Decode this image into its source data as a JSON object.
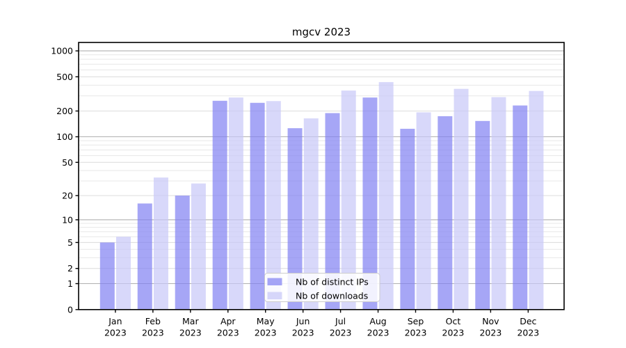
{
  "chart_data": {
    "type": "bar",
    "title": "mgcv 2023",
    "categories": [
      "Jan",
      "Feb",
      "Mar",
      "Apr",
      "May",
      "Jun",
      "Jul",
      "Aug",
      "Sep",
      "Oct",
      "Nov",
      "Dec"
    ],
    "year_label": "2023",
    "series": [
      {
        "name": "Nb of distinct IPs",
        "color": "rgba(128,128,242,0.7)",
        "values": [
          5,
          16,
          20,
          263,
          249,
          126,
          189,
          287,
          124,
          174,
          153,
          232
        ]
      },
      {
        "name": "Nb of downloads",
        "color": "rgba(200,200,248,0.7)",
        "values": [
          6,
          33,
          28,
          287,
          261,
          164,
          346,
          434,
          193,
          362,
          290,
          342
        ]
      }
    ],
    "yscale": "log1p",
    "y_ticks": [
      0,
      1,
      2,
      5,
      10,
      20,
      50,
      100,
      200,
      500,
      1000
    ],
    "ylim": [
      0,
      1258
    ],
    "grid": true,
    "legend_position": "lower-center",
    "xlabel": "",
    "ylabel": ""
  },
  "colors": {
    "major_grid": "#b0b0b0",
    "labeled_grid": "#dcdcdc",
    "minor_grid": "#e7e7e7",
    "spine": "#000000",
    "tick": "#000000",
    "text": "#000000",
    "legend_border": "#cccccc",
    "legend_bg": "rgba(255,255,255,0.85)",
    "background": "#ffffff"
  }
}
